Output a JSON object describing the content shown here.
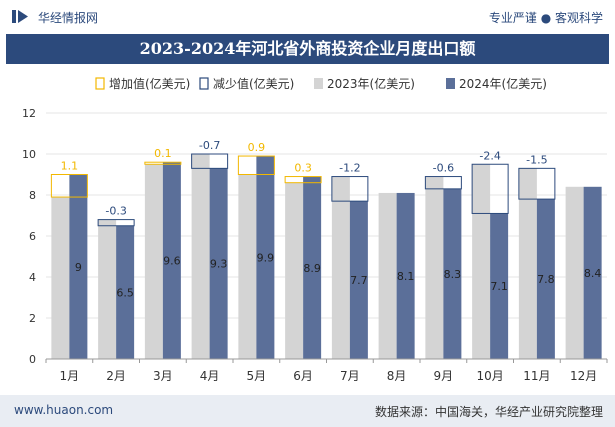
{
  "header": {
    "brand": "华经情报网",
    "tagline": "专业严谨 ● 客观科学"
  },
  "footer": {
    "site": "www.huaon.com",
    "source": "数据来源：中国海关，华经产业研究院整理"
  },
  "colors": {
    "series2023": "#d4d4d4",
    "series2024": "#5b6f99",
    "increase": "#f2b800",
    "decrease": "#2c4a7c",
    "title_bg": "#2c4a7c"
  },
  "chart_data": {
    "type": "bar",
    "title": "2023-2024年河北省外商投资企业月度出口额",
    "categories": [
      "1月",
      "2月",
      "3月",
      "4月",
      "5月",
      "6月",
      "7月",
      "8月",
      "9月",
      "10月",
      "11月",
      "12月"
    ],
    "series": [
      {
        "name": "2023年(亿美元)",
        "values": [
          7.9,
          6.8,
          9.5,
          10.0,
          9.0,
          8.6,
          8.9,
          8.1,
          8.9,
          9.5,
          9.3,
          8.4
        ]
      },
      {
        "name": "2024年(亿美元)",
        "values": [
          9,
          6.5,
          9.6,
          9.3,
          9.9,
          8.9,
          7.7,
          8.1,
          8.3,
          7.1,
          7.8,
          8.4
        ]
      }
    ],
    "changes": [
      1.1,
      -0.3,
      0.1,
      -0.7,
      0.9,
      0.3,
      -1.2,
      null,
      -0.6,
      -2.4,
      -1.5,
      null
    ],
    "legend": [
      "增加值(亿美元)",
      "减少值(亿美元)",
      "2023年(亿美元)",
      "2024年(亿美元)"
    ],
    "ylim": [
      0,
      12
    ],
    "yticks": [
      0,
      2,
      4,
      6,
      8,
      10,
      12
    ]
  }
}
